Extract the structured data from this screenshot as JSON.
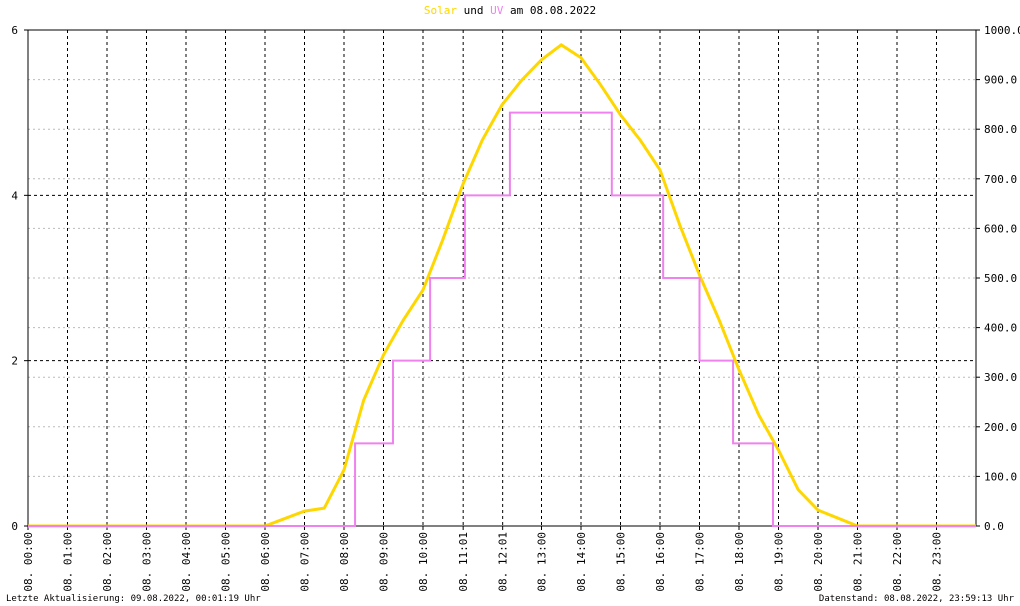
{
  "chart_data": {
    "type": "line",
    "title_joiner": "und",
    "title_suffix": "am 08.08.2022",
    "xlim": [
      0,
      24
    ],
    "xticks": [
      {
        "value": 0,
        "label": "08. 00:00"
      },
      {
        "value": 1,
        "label": "08. 01:00"
      },
      {
        "value": 2,
        "label": "08. 02:00"
      },
      {
        "value": 3,
        "label": "08. 03:00"
      },
      {
        "value": 4,
        "label": "08. 04:00"
      },
      {
        "value": 5,
        "label": "08. 05:00"
      },
      {
        "value": 6,
        "label": "08. 06:00"
      },
      {
        "value": 7,
        "label": "08. 07:00"
      },
      {
        "value": 8,
        "label": "08. 08:00"
      },
      {
        "value": 9,
        "label": "08. 09:00"
      },
      {
        "value": 10,
        "label": "08. 10:00"
      },
      {
        "value": 11.017,
        "label": "08. 11:01"
      },
      {
        "value": 12.017,
        "label": "08. 12:01"
      },
      {
        "value": 13,
        "label": "08. 13:00"
      },
      {
        "value": 14,
        "label": "08. 14:00"
      },
      {
        "value": 15,
        "label": "08. 15:00"
      },
      {
        "value": 16,
        "label": "08. 16:00"
      },
      {
        "value": 17,
        "label": "08. 17:00"
      },
      {
        "value": 18,
        "label": "08. 18:00"
      },
      {
        "value": 19,
        "label": "08. 19:00"
      },
      {
        "value": 20,
        "label": "08. 20:00"
      },
      {
        "value": 21,
        "label": "08. 21:00"
      },
      {
        "value": 22,
        "label": "08. 22:00"
      },
      {
        "value": 23,
        "label": "08. 23:00"
      }
    ],
    "ylim": [
      0,
      6
    ],
    "yticks": [
      0,
      2,
      4,
      6
    ],
    "y2lim": [
      0,
      1000
    ],
    "y2ticks": [
      {
        "value": 0,
        "label": "0.0"
      },
      {
        "value": 100,
        "label": "100.0"
      },
      {
        "value": 200,
        "label": "200.0"
      },
      {
        "value": 300,
        "label": "300.0"
      },
      {
        "value": 400,
        "label": "400.0"
      },
      {
        "value": 500,
        "label": "500.0"
      },
      {
        "value": 600,
        "label": "600.0"
      },
      {
        "value": 700,
        "label": "700.0"
      },
      {
        "value": 800,
        "label": "800.0"
      },
      {
        "value": 900,
        "label": "900.0"
      },
      {
        "value": 1000,
        "label": "1000.0"
      }
    ],
    "grid": true,
    "series": [
      {
        "name": "Solar",
        "color": "#ffd700",
        "axis": "y2",
        "x": [
          0,
          0.5,
          1,
          1.5,
          2,
          2.5,
          3,
          3.5,
          4,
          4.5,
          5,
          5.5,
          6,
          6.5,
          7,
          7.5,
          8,
          8.5,
          9,
          9.5,
          10,
          10.5,
          11,
          11.5,
          12,
          12.5,
          13,
          13.5,
          14,
          14.5,
          15,
          15.5,
          16,
          16.5,
          17,
          17.5,
          18,
          18.5,
          19,
          19.5,
          20,
          20.5,
          21,
          21.5,
          22,
          22.5,
          23,
          23.5,
          24
        ],
        "values": [
          0,
          0,
          0,
          0,
          0,
          0,
          0,
          0,
          0,
          0,
          0,
          0,
          0,
          15,
          30,
          36,
          113,
          254,
          345,
          415,
          476,
          577,
          687,
          778,
          849,
          899,
          940,
          970,
          944,
          889,
          829,
          778,
          718,
          607,
          506,
          415,
          315,
          224,
          153,
          73,
          32,
          16,
          0,
          0,
          0,
          0,
          0,
          0,
          0
        ]
      },
      {
        "name": "UV",
        "color": "#ee82ee",
        "axis": "y",
        "x": [
          0,
          8.28,
          8.28,
          9.24,
          9.24,
          10.18,
          10.18,
          11.06,
          11.06,
          12.2,
          12.2,
          14.78,
          14.78,
          16.08,
          16.08,
          17.0,
          17.0,
          17.85,
          17.85,
          18.86,
          18.86,
          24
        ],
        "values": [
          0,
          0,
          1,
          1,
          2,
          2,
          3,
          3,
          4,
          4,
          5,
          5,
          4,
          4,
          3,
          3,
          2,
          2,
          1,
          1,
          0,
          0
        ]
      }
    ],
    "footer_left": "Letzte Aktualisierung: 09.08.2022, 00:01:19 Uhr",
    "footer_right": "Datenstand: 08.08.2022, 23:59:13 Uhr"
  }
}
